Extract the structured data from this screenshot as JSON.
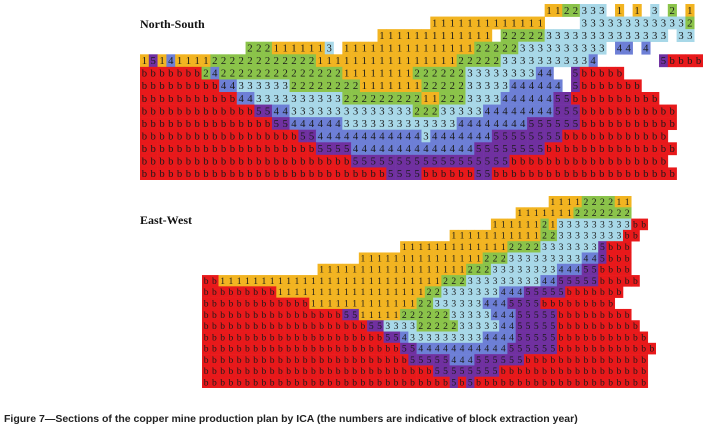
{
  "figure": {
    "caption": "Figure 7—Sections of the copper mine production plan by ICA (the numbers are indicative of block extraction year)"
  },
  "legend_colors": {
    "1": "#f2b421",
    "2": "#8bc34a",
    "3": "#a8d8e8",
    "4": "#6d7fd6",
    "5": "#7030a0",
    "b": "#e8191b"
  },
  "sections": [
    {
      "title": "North-South",
      "rows": [
        "..............................................1122333.1.1.3.2.1",
        ".................................1111111111111....3333333333332",
        "...........................1111111111111.2222233333333333333.33",
        "............2221111113.111111111111111222223333333333.44.4..",
        "1514111122222222222211111111111111112222233333333334.......5bbbb",
        "bbbbbbb2422222222222222111111112222223333333344..5bbbbb",
        "bbbbbbbbb443333332222222211111112222233333444444.5bbbbbbb",
        "bbbbbbbbbbb44333333333322222222211222333344444455bbbbbbbbbb",
        "bbbbbbbbbbbbb5544333333333333332223333344444444555bbbbbbbbbbb",
        "bbbbbbbbbbbbbbb55444444333333333333344444444555555bbbbbbbbbbb",
        "bbbbbbbbbbbbbbbbbb554444444444443444444455555555bbbbbbbbbbbb",
        "bbbbbbbbbbbbbbbbbbbb55554444444444444455555555bbbbbbbbbbbbbbb",
        "bbbbbbbbbbbbbbbbbbbbbbbb555555555555555555bbbbbbbbbbbbbbbbbb",
        "bbbbbbbbbbbbbbbbbbbbbbbbbbbb5555bbbbbb55bbbbbbbbbbbbbbbbbbbbb"
      ]
    },
    {
      "title": "East-West",
      "rows": [
        "..........................................1111222211",
        "......................................11111112222222",
        "...................................11111121333333333bb",
        "..............................111111111112233333333bb",
        "........................1111111111111222233333335bbb",
        "...................111111111111111222333333333445bbb",
        "..............1111111111111111112223333333344455bbbb",
        "bb1111111111111111111111111112223333333334455555bbbbb",
        "bbbbbbbbb11111111111111111122333333344455555bbbbbbb",
        "bbbbbbbbbbbbb1111111111111223333334445555bbbbbbbbb",
        "bbbbbbbbbbbbbbbbb55111112222223333344455555bbbbbbbbb",
        "bbbbbbbbbbbbbbbbbbbb55333322222333334455555bbbbbbbbbb",
        "bbbbbbbbbbbbbbbbbbbbbb554333333333444455555bbbbbbbbbbb",
        "bbbbbbbbbbbbbbbbbbbbbbbb5544444444444555555bbbbbbbbbbbb",
        "bbbbbbbbbbbbbbbbbbbbbbbbb55555444555555bbbbbbbbbbbbbbb",
        "bbbbbbbbbbbbbbbbbbbbbbbbbbbb55555555bbbbbbbbbbbbbbbbbb",
        "bbbbbbbbbbbbbbbbbbbbbbbbbbbbbb5b5bbbbbbbbbbbbbbbbbbbbb"
      ]
    }
  ]
}
